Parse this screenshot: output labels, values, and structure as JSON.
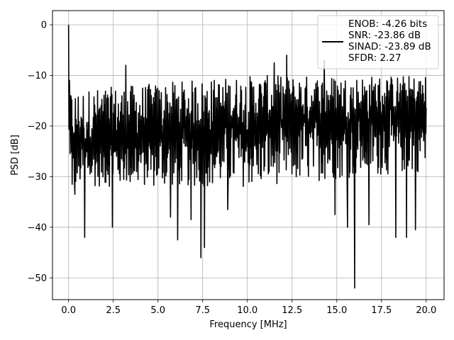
{
  "chart_data": {
    "type": "line",
    "title": "",
    "xlabel": "Frequency [MHz]",
    "ylabel": "PSD [dB]",
    "xlim": [
      -0.9,
      21.0
    ],
    "ylim": [
      -54.3,
      2.8
    ],
    "xticks": [
      0.0,
      2.5,
      5.0,
      7.5,
      10.0,
      12.5,
      15.0,
      17.5,
      20.0
    ],
    "xtick_labels": [
      "0.0",
      "2.5",
      "5.0",
      "7.5",
      "10.0",
      "12.5",
      "15.0",
      "17.5",
      "20.0"
    ],
    "yticks": [
      0,
      -10,
      -20,
      -30,
      -40,
      -50
    ],
    "ytick_labels": [
      "0",
      "−10",
      "−20",
      "−30",
      "−40",
      "−50"
    ],
    "grid": true,
    "legend_position": "top-right",
    "series": [
      {
        "name": "ENOB: -4.26 bits\nSNR: -23.86 dB\nSINAD: -23.89 dB\nSFDR: 2.27",
        "color": "#000000",
        "x_range": [
          0.0,
          20.0
        ],
        "points": 1000,
        "noise": {
          "band_min": -32,
          "band_max": -10,
          "mean_start": -24,
          "mean_end": -18
        },
        "peaks": [
          {
            "x": 0.0,
            "y": 0.0
          },
          {
            "x": 0.05,
            "y": -11.0
          },
          {
            "x": 0.12,
            "y": -14.0
          },
          {
            "x": 0.2,
            "y": -31.5
          },
          {
            "x": 0.35,
            "y": -33.5
          },
          {
            "x": 0.9,
            "y": -42.0
          },
          {
            "x": 2.45,
            "y": -40.0
          },
          {
            "x": 3.2,
            "y": -8.0
          },
          {
            "x": 5.7,
            "y": -38.0
          },
          {
            "x": 6.1,
            "y": -42.5
          },
          {
            "x": 6.85,
            "y": -38.5
          },
          {
            "x": 7.4,
            "y": -46.0
          },
          {
            "x": 7.6,
            "y": -44.0
          },
          {
            "x": 8.9,
            "y": -36.5
          },
          {
            "x": 11.5,
            "y": -7.5
          },
          {
            "x": 12.2,
            "y": -6.0
          },
          {
            "x": 14.3,
            "y": -7.0
          },
          {
            "x": 14.9,
            "y": -37.5
          },
          {
            "x": 15.6,
            "y": -40.0
          },
          {
            "x": 16.0,
            "y": -52.0
          },
          {
            "x": 16.8,
            "y": -39.5
          },
          {
            "x": 18.3,
            "y": -42.0
          },
          {
            "x": 18.9,
            "y": -42.0
          },
          {
            "x": 19.4,
            "y": -40.5
          }
        ]
      }
    ]
  }
}
